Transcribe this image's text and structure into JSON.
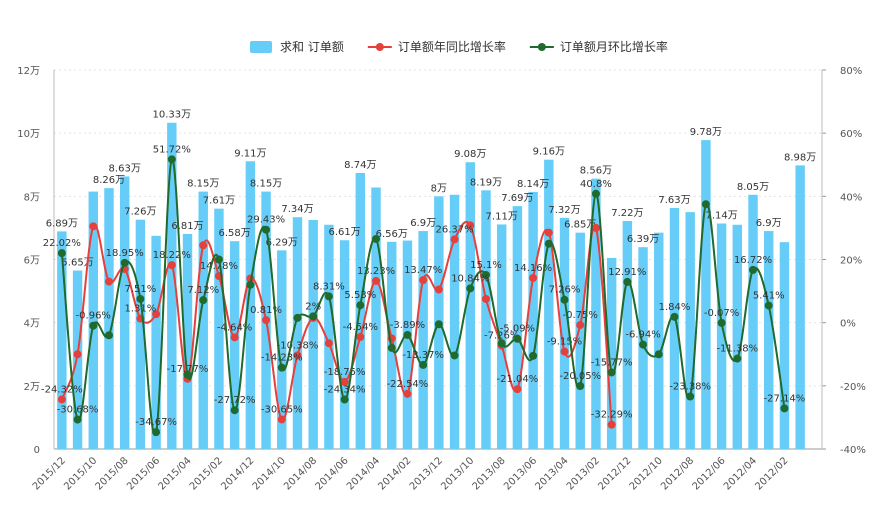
{
  "chart_data": {
    "type": "bar-line",
    "bar_type": "bar",
    "line_type": "line",
    "categories": [
      "2015/12",
      null,
      "2015/10",
      null,
      "2015/08",
      null,
      "2015/06",
      null,
      "2015/04",
      null,
      "2015/02",
      null,
      "2014/12",
      null,
      "2014/10",
      null,
      "2014/08",
      null,
      "2014/06",
      null,
      "2014/04",
      null,
      "2014/02",
      null,
      "2013/12",
      null,
      "2013/10",
      null,
      "2013/08",
      null,
      "2013/06",
      null,
      "2013/04",
      null,
      "2013/02",
      null,
      "2012/12",
      null,
      "2012/10",
      null,
      "2012/08",
      null,
      "2012/06",
      null,
      "2012/04",
      null,
      "2012/02",
      null
    ],
    "ylim": [
      0,
      12
    ],
    "yticks": [
      0,
      {
        "value": 2,
        "label": "2万"
      },
      {
        "value": 4,
        "label": "4万"
      },
      {
        "value": 6,
        "label": "6万"
      },
      {
        "value": 8,
        "label": "8万"
      },
      {
        "value": 10,
        "label": "10万"
      },
      {
        "value": 12,
        "label": "12万"
      }
    ],
    "y2lim": [
      -40,
      80
    ],
    "y2ticks": [
      {
        "value": -40,
        "label": "-40%"
      },
      {
        "value": -20,
        "label": "-20%"
      },
      {
        "value": 0,
        "label": "0%"
      },
      {
        "value": 20,
        "label": "20%"
      },
      {
        "value": 40,
        "label": "40%"
      },
      {
        "value": 60,
        "label": "60%"
      },
      {
        "value": 80,
        "label": "80%"
      }
    ],
    "grid": true,
    "series": [
      {
        "name": "求和 订单额",
        "kind": "bar",
        "color": "#66cdf8",
        "values": [
          6.89,
          5.65,
          8.15,
          8.26,
          8.63,
          7.26,
          6.75,
          10.33,
          6.81,
          8.15,
          7.61,
          6.58,
          9.11,
          8.15,
          6.29,
          7.34,
          7.25,
          7.1,
          6.61,
          8.74,
          8.28,
          6.56,
          6.6,
          6.9,
          8,
          8.05,
          9.08,
          8.19,
          7.11,
          7.69,
          8.14,
          9.16,
          7.32,
          6.85,
          8.56,
          6.05,
          7.22,
          6.39,
          6.85,
          7.63,
          7.5,
          9.78,
          7.14,
          7.1,
          8.05,
          6.9,
          6.55,
          8.98
        ],
        "value_labels": [
          "6.89万",
          "5.65万",
          null,
          "8.26万",
          "8.63万",
          "7.26万",
          null,
          "10.33万",
          "6.81万",
          "8.15万",
          "7.61万",
          "6.58万",
          "9.11万",
          "8.15万",
          "6.29万",
          "7.34万",
          null,
          null,
          "6.61万",
          "8.74万",
          null,
          "6.56万",
          null,
          "6.9万",
          "8万",
          null,
          "9.08万",
          "8.19万",
          "7.11万",
          "7.69万",
          "8.14万",
          "9.16万",
          "7.32万",
          "6.85万",
          "8.56万",
          null,
          "7.22万",
          "6.39万",
          null,
          "7.63万",
          null,
          "9.78万",
          "7.14万",
          null,
          "8.05万",
          "6.9万",
          null,
          "8.98万"
        ]
      },
      {
        "name": "订单额年同比增长率",
        "kind": "line",
        "axis": "y2",
        "color": "#e5403c",
        "values": [
          -24.32,
          -10,
          30.5,
          13,
          17,
          1.31,
          2.7,
          18.22,
          -17.77,
          24.5,
          14.78,
          -4.64,
          14,
          0.81,
          -30.65,
          -10.38,
          1.5,
          -6.5,
          -18.75,
          -4.54,
          13.23,
          -5,
          -22.54,
          13.47,
          10.5,
          26.37,
          30.8,
          7.5,
          -7.26,
          -21.04,
          14.16,
          28.5,
          -9.15,
          -0.75,
          30,
          -32.29,
          null,
          null,
          null,
          null,
          null,
          null,
          null,
          null,
          null,
          null,
          null,
          null
        ],
        "value_labels": [
          "-24.32%",
          null,
          null,
          null,
          null,
          "1.31%",
          null,
          "18.22%",
          "-17.77%",
          null,
          "14.78%",
          "-4.64%",
          null,
          "0.81%",
          "-30.65%",
          "-10.38%",
          null,
          null,
          "-18.75%",
          "-4.54%",
          "13.23%",
          null,
          "-22.54%",
          "13.47%",
          null,
          "26.37%",
          null,
          null,
          "-7.26%",
          "-21.04%",
          "14.16%",
          null,
          "-9.15%",
          "-0.75%",
          null,
          "-32.29%",
          null,
          null,
          null,
          null,
          null,
          null,
          null,
          null,
          null,
          null,
          null,
          null
        ]
      },
      {
        "name": "订单额月环比增长率",
        "kind": "line",
        "axis": "y2",
        "color": "#1f6a2c",
        "values": [
          22.02,
          -30.68,
          -0.96,
          -4,
          18.95,
          7.51,
          -34.67,
          51.72,
          -16.5,
          7.12,
          20,
          -27.72,
          12,
          29.43,
          -14.23,
          1.5,
          2,
          8.31,
          -24.34,
          5.53,
          26.5,
          -8,
          -3.89,
          -13.37,
          -0.5,
          -10.38,
          10.84,
          15.1,
          -6.5,
          -5.09,
          -10.5,
          25,
          7.26,
          -20.05,
          40.8,
          -15.77,
          12.91,
          -6.94,
          -10,
          1.84,
          -23.38,
          37.5,
          -0.07,
          -11.38,
          16.72,
          5.41,
          -27.14,
          null
        ],
        "value_labels": [
          "22.02%",
          "-30.68%",
          "-0.96%",
          null,
          "18.95%",
          "7.51%",
          "-34.67%",
          "51.72%",
          null,
          "7.12%",
          null,
          "-27.72%",
          null,
          "29.43%",
          "-14.23%",
          null,
          "2%",
          "8.31%",
          "-24.34%",
          "5.53%",
          null,
          null,
          "-3.89%",
          "-13.37%",
          null,
          null,
          "10.84%",
          "15.1%",
          null,
          "-5.09%",
          null,
          null,
          "7.26%",
          "-20.05%",
          "40.8%",
          "-15.77%",
          "12.91%",
          "-6.94%",
          null,
          "1.84%",
          "-23.38%",
          null,
          "-0.07%",
          "-11.38%",
          "16.72%",
          "5.41%",
          "-27.14%",
          null
        ]
      }
    ]
  }
}
